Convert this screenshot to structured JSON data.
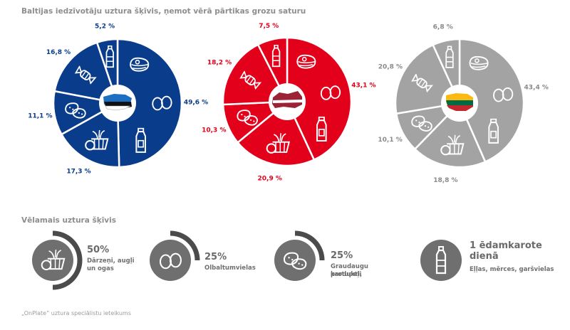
{
  "title": "Baltijas iedzīvotāju uztura šķīvis, ņemot vērā pārtikas grozu saturu",
  "subtitle": "Vēlamais uztura šķīvis",
  "footnote": "„OnPlate” uztura speciālistu ieteikums",
  "colors": {
    "estonia": "#0a3c8c",
    "latvia": "#e3001b",
    "lithuania": "#a3a3a3",
    "rec_icon": "#6f6f6f",
    "rec_ring": "#4b4b4b"
  },
  "chart_data": [
    {
      "type": "pie",
      "country_flag": "estonia",
      "categories": [
        "meat-eggs-dairy",
        "vegetables-fruit",
        "grains-potatoes",
        "sweets",
        "oils-sauces"
      ],
      "values": [
        49.6,
        17.3,
        11.1,
        16.8,
        5.2
      ],
      "labels": [
        "49,6 %",
        "17,3 %",
        "11,1 %",
        "16,8 %",
        "5,2 %"
      ]
    },
    {
      "type": "pie",
      "country_flag": "latvia",
      "categories": [
        "meat-eggs-dairy",
        "vegetables-fruit",
        "grains-potatoes",
        "sweets",
        "oils-sauces"
      ],
      "values": [
        43.1,
        20.9,
        10.3,
        18.2,
        7.5
      ],
      "labels": [
        "43,1 %",
        "20,9 %",
        "10,3 %",
        "18,2 %",
        "7,5 %"
      ]
    },
    {
      "type": "pie",
      "country_flag": "lithuania",
      "categories": [
        "meat-eggs-dairy",
        "vegetables-fruit",
        "grains-potatoes",
        "sweets",
        "oils-sauces"
      ],
      "values": [
        43.4,
        18.8,
        10.1,
        20.8,
        6.8
      ],
      "labels": [
        "43,4 %",
        "18,8 %",
        "10,1 %",
        "20,8 %",
        "6,8 %"
      ]
    }
  ],
  "recommendations": [
    {
      "percent": "50%",
      "text1": "Dārzeņi, augļi",
      "text2": "un ogas",
      "icon": "vegetables-basket-icon",
      "value": 50
    },
    {
      "percent": "25%",
      "text1": "Olbaltumvielas",
      "text2": "",
      "icon": "eggs-icon",
      "value": 25
    },
    {
      "percent": "25%",
      "text1": "Graudaugu produkti,",
      "text2": "kartupeļi",
      "icon": "potatoes-icon",
      "value": 25
    },
    {
      "percent": "1 ēdamkarote",
      "percent2": "dienā",
      "text1": "Eļļas, mērces, garšvielas",
      "text2": "",
      "icon": "oil-bottle-icon",
      "value": 0
    }
  ]
}
